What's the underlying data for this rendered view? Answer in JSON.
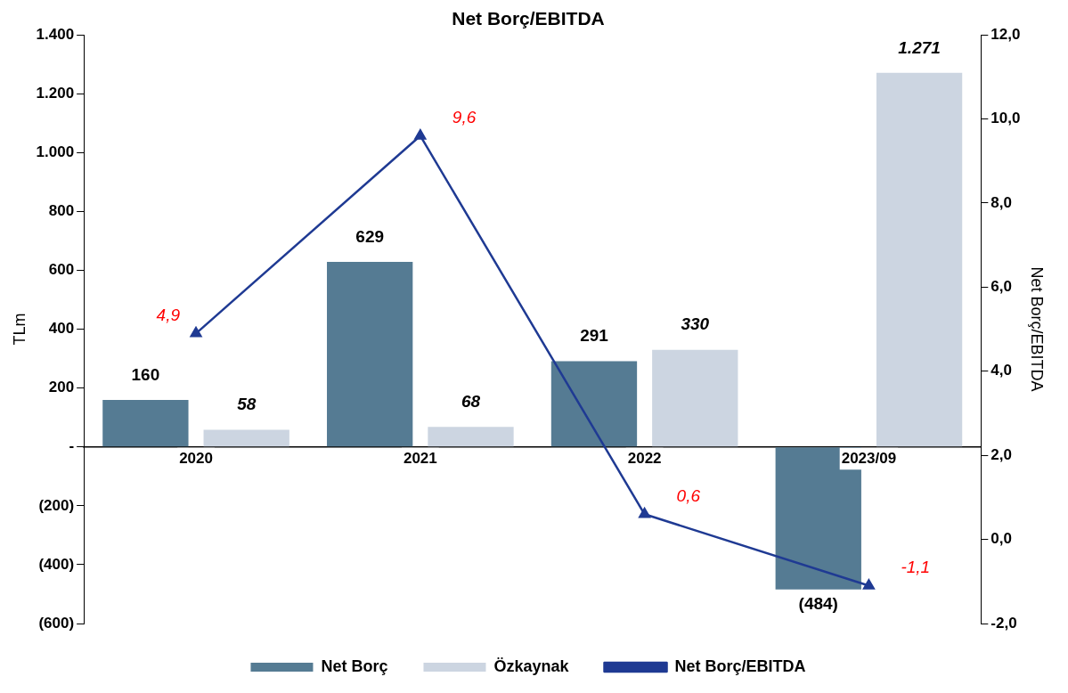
{
  "chart_data": {
    "type": "bar",
    "title": "Net Borç/EBITDA",
    "ylabel": "TLm",
    "y2label": "Net Borç/EBITDA",
    "categories": [
      "2020",
      "2021",
      "2022",
      "2023/09"
    ],
    "series": [
      {
        "name": "Net Borç",
        "color": "#557b93",
        "values": [
          160,
          629,
          291,
          -484
        ],
        "value_labels": [
          "160",
          "629",
          "291",
          "(484)"
        ]
      },
      {
        "name": "Özkaynak",
        "color": "#ccd5e1",
        "values": [
          58,
          68,
          330,
          1271
        ],
        "value_labels": [
          "58",
          "68",
          "330",
          "1.271"
        ]
      },
      {
        "name": "Net Borç/EBITDA",
        "type": "line",
        "axis": "y2",
        "color": "#1f3a93",
        "marker": "triangle",
        "values": [
          4.9,
          9.6,
          0.6,
          -1.1
        ],
        "value_labels": [
          "4,9",
          "9,6",
          "0,6",
          "-1,1"
        ]
      }
    ],
    "ylim": [
      -600,
      1400
    ],
    "yticks": [
      {
        "value": -600,
        "label": "(600)"
      },
      {
        "value": -400,
        "label": "(400)"
      },
      {
        "value": -200,
        "label": "(200)"
      },
      {
        "value": 0,
        "label": "-"
      },
      200,
      400,
      600,
      800,
      {
        "value": 1000,
        "label": "1.000"
      },
      {
        "value": 1200,
        "label": "1.200"
      },
      {
        "value": 1400,
        "label": "1.400"
      }
    ],
    "y2lim": [
      -2,
      12
    ],
    "y2ticks": [
      {
        "value": -2,
        "label": "-2,0"
      },
      {
        "value": 0,
        "label": "0,0"
      },
      {
        "value": 2,
        "label": "2,0"
      },
      {
        "value": 4,
        "label": "4,0"
      },
      {
        "value": 6,
        "label": "6,0"
      },
      {
        "value": 8,
        "label": "8,0"
      },
      {
        "value": 10,
        "label": "10,0"
      },
      {
        "value": 12,
        "label": "12,0"
      }
    ],
    "grid": false,
    "legend": "bottom"
  }
}
